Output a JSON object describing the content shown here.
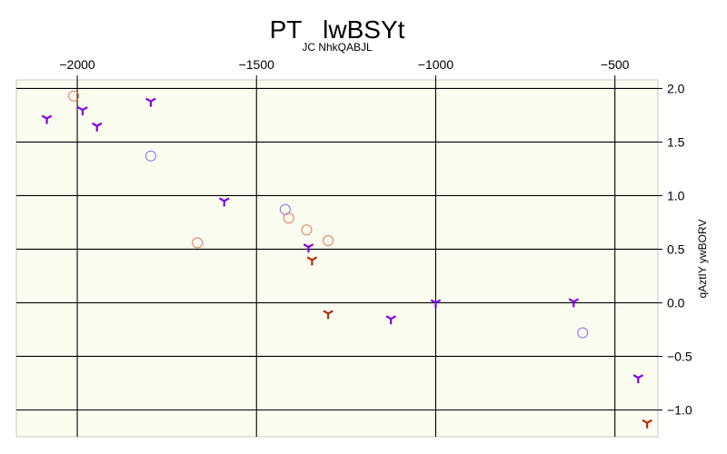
{
  "chart_data": {
    "type": "scatter",
    "title": "PT   lwBSYt",
    "subtitle": "JC NhkQABJL",
    "xlabel": "",
    "ylabel": "qAztIY ywBORV",
    "xlim": [
      -2170,
      -380
    ],
    "ylim": [
      -1.25,
      2.08
    ],
    "x_ticks": [
      -2000,
      -1500,
      -1000,
      -500
    ],
    "x_tick_labels": [
      "−2000",
      "−1500",
      "−1000",
      "−500"
    ],
    "y_ticks": [
      2.0,
      1.5,
      1.0,
      0.5,
      0.0,
      -0.5,
      -1.0
    ],
    "y_tick_labels": [
      "2.0",
      "1.5",
      "1.0",
      "0.5",
      "0.0",
      "−0.5",
      "−1.0"
    ],
    "x_axis_position": "top",
    "y_axis_position": "right",
    "grid": true,
    "plot_background": "#fafcf0",
    "series": [
      {
        "marker": "tri-down",
        "color": "#8000e8",
        "points": [
          {
            "x": -2085,
            "y": 1.72
          },
          {
            "x": -1985,
            "y": 1.8
          },
          {
            "x": -1945,
            "y": 1.65
          },
          {
            "x": -1795,
            "y": 1.88
          },
          {
            "x": -1590,
            "y": 0.95
          },
          {
            "x": -1355,
            "y": 0.52
          },
          {
            "x": -1125,
            "y": -0.15
          },
          {
            "x": -1000,
            "y": 0.0
          },
          {
            "x": -615,
            "y": 0.01
          },
          {
            "x": -435,
            "y": -0.7
          }
        ]
      },
      {
        "marker": "open-circle",
        "color": "#8a6cf0",
        "points": [
          {
            "x": -1795,
            "y": 1.37
          },
          {
            "x": -1420,
            "y": 0.87
          },
          {
            "x": -590,
            "y": -0.28
          }
        ]
      },
      {
        "marker": "open-circle",
        "color": "#e07a5a",
        "points": [
          {
            "x": -2010,
            "y": 1.93
          },
          {
            "x": -1665,
            "y": 0.56
          },
          {
            "x": -1410,
            "y": 0.79
          },
          {
            "x": -1360,
            "y": 0.68
          },
          {
            "x": -1300,
            "y": 0.58
          }
        ]
      },
      {
        "marker": "tri-down",
        "color": "#b02a08",
        "points": [
          {
            "x": -1345,
            "y": 0.4
          },
          {
            "x": -1300,
            "y": -0.1
          },
          {
            "x": -410,
            "y": -1.12
          }
        ]
      }
    ]
  }
}
